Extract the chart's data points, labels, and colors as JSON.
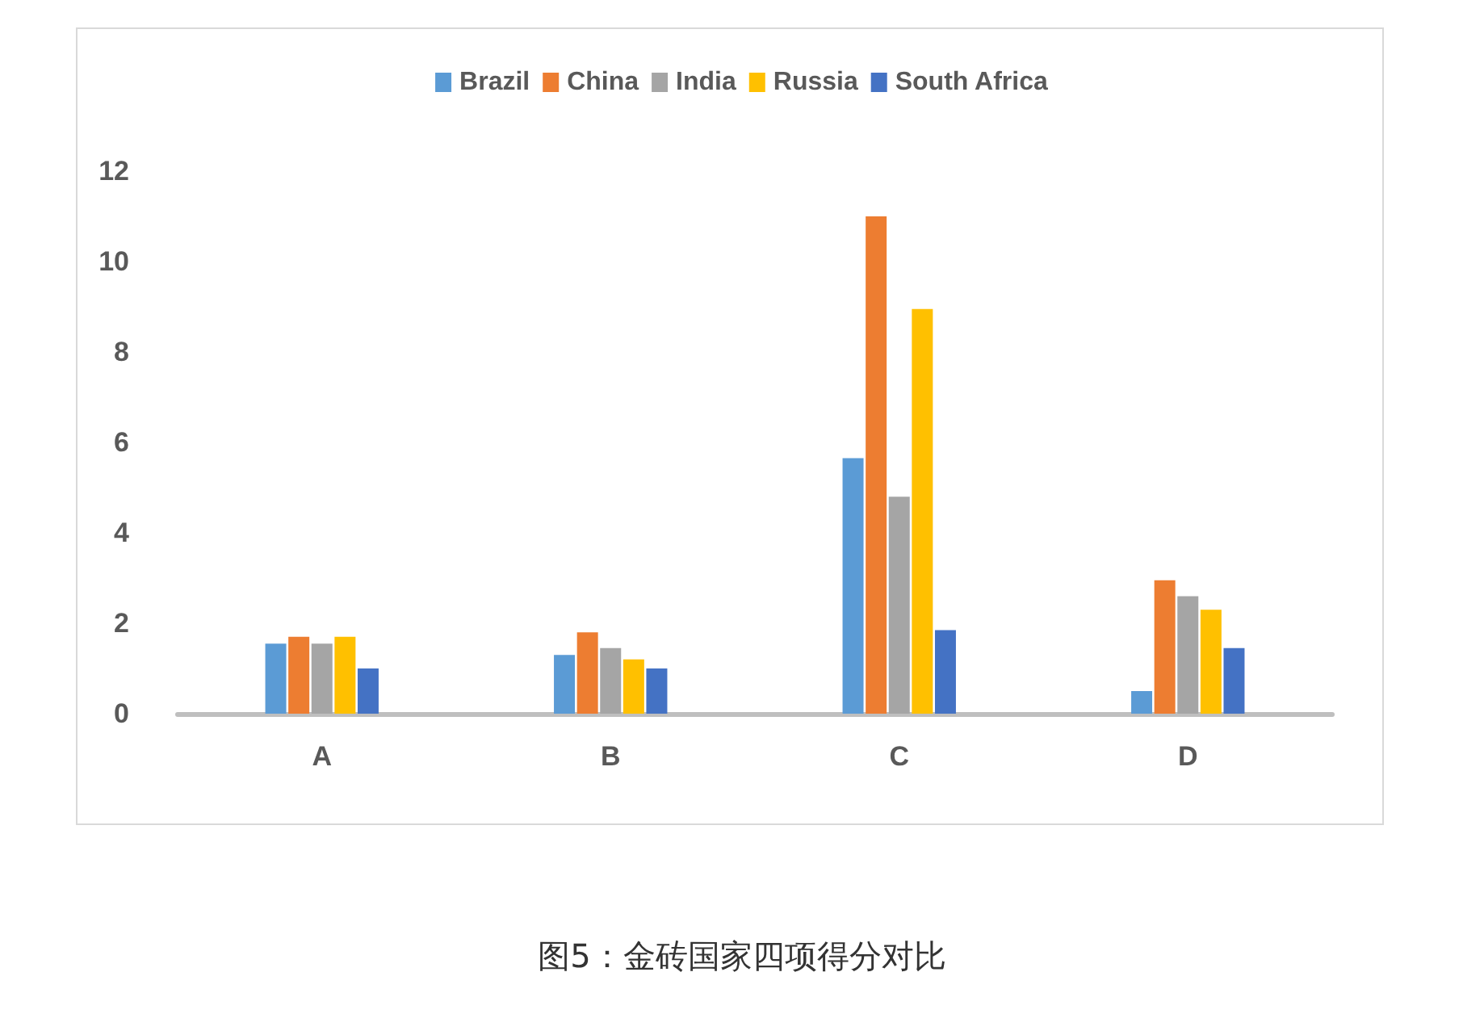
{
  "chart_data": {
    "type": "bar",
    "categories": [
      "A",
      "B",
      "C",
      "D"
    ],
    "series": [
      {
        "name": "Brazil",
        "color": "#5b9bd5",
        "values": [
          1.55,
          1.3,
          5.65,
          0.5
        ]
      },
      {
        "name": "China",
        "color": "#ed7d31",
        "values": [
          1.7,
          1.8,
          11.0,
          2.95
        ]
      },
      {
        "name": "India",
        "color": "#a5a5a5",
        "values": [
          1.55,
          1.45,
          4.8,
          2.6
        ]
      },
      {
        "name": "Russia",
        "color": "#ffc000",
        "values": [
          1.7,
          1.2,
          8.95,
          2.3
        ]
      },
      {
        "name": "South Africa",
        "color": "#4472c4",
        "values": [
          1.0,
          1.0,
          1.85,
          1.45
        ]
      }
    ],
    "ylim": [
      0,
      12
    ],
    "yticks": [
      0,
      2,
      4,
      6,
      8,
      10,
      12
    ],
    "grid": false,
    "legend": "top",
    "annotations": [
      "图5：金砖国家四项得分对比"
    ]
  }
}
